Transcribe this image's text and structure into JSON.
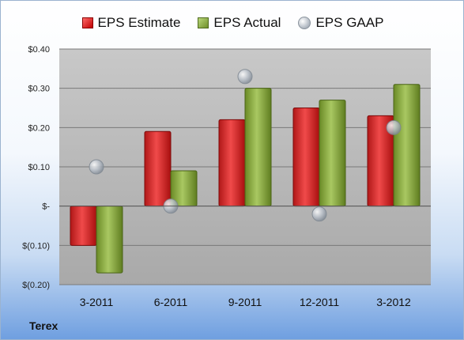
{
  "company": "Terex",
  "colors": {
    "estimate": "#d42a2a",
    "actual": "#8db045",
    "gaap": "#b8bfc8"
  },
  "legend": {
    "estimate": "EPS Estimate",
    "actual": "EPS Actual",
    "gaap": "EPS GAAP"
  },
  "chart_data": {
    "type": "bar",
    "categories": [
      "3-2011",
      "6-2011",
      "9-2011",
      "12-2011",
      "3-2012"
    ],
    "series": [
      {
        "name": "EPS Estimate",
        "type": "bar",
        "values": [
          -0.1,
          0.19,
          0.22,
          0.25,
          0.23
        ]
      },
      {
        "name": "EPS Actual",
        "type": "bar",
        "values": [
          -0.17,
          0.09,
          0.3,
          0.27,
          0.31
        ]
      },
      {
        "name": "EPS GAAP",
        "type": "scatter",
        "values": [
          0.1,
          0.0,
          0.33,
          -0.02,
          0.2
        ]
      }
    ],
    "ylim": [
      -0.2,
      0.4
    ],
    "yticks": [
      0.4,
      0.3,
      0.2,
      0.1,
      0.0,
      -0.1,
      -0.2
    ],
    "ytick_labels": [
      "$0.40",
      "$0.30",
      "$0.20",
      "$0.10",
      "$-",
      "$(0.10)",
      "$(0.20)"
    ],
    "grid": true,
    "legend_position": "top"
  }
}
